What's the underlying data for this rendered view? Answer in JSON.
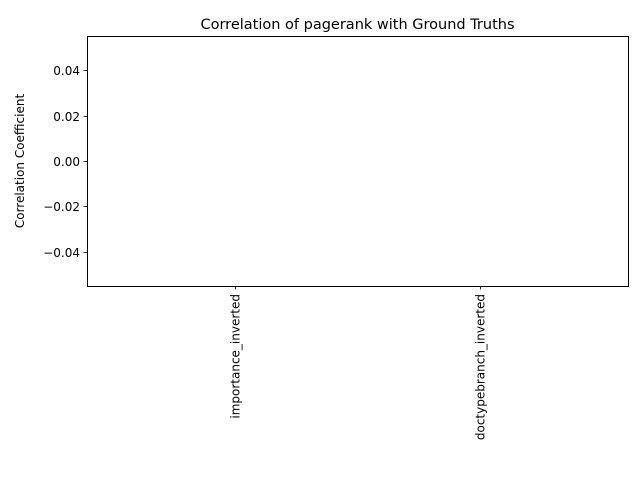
{
  "chart_data": {
    "type": "bar",
    "title": "Correlation of pagerank with Ground Truths",
    "xlabel": "",
    "ylabel": "Correlation Coefficient",
    "categories": [
      "importance_inverted",
      "doctypebranch_inverted"
    ],
    "values": [
      null,
      null
    ],
    "ylim": [
      -0.055,
      0.055
    ],
    "yticks": [
      -0.04,
      -0.02,
      0.0,
      0.02,
      0.04
    ],
    "ytick_labels": [
      "−0.04",
      "−0.02",
      "0.00",
      "0.02",
      "0.04"
    ],
    "grid": false,
    "legend": "none"
  }
}
